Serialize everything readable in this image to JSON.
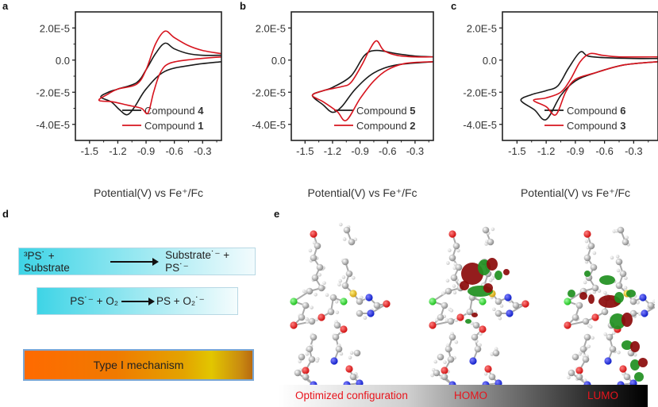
{
  "panel_labels": {
    "a": "a",
    "b": "b",
    "c": "c",
    "d": "d",
    "e": "e"
  },
  "colors": {
    "series_black": "#1a1a1a",
    "series_red": "#d7141e",
    "homo_lumo_positive": "#8b0a0a",
    "homo_lumo_negative": "#1f8f1f",
    "label_red": "#e8141c"
  },
  "chart_data": [
    {
      "type": "line",
      "panel": "a",
      "xlabel": "Potential(V) vs Fe⁺/Fc",
      "ylabel": "",
      "xlim": [
        -1.65,
        -0.1
      ],
      "ylim": [
        -5e-05,
        3e-05
      ],
      "xticks": [
        -1.5,
        -1.2,
        -0.9,
        -0.6,
        -0.3
      ],
      "xtick_labels": [
        "-1.5",
        "-1.2",
        "-0.9",
        "-0.6",
        "-0.3"
      ],
      "yticks": [
        2e-05,
        0,
        -2e-05,
        -4e-05
      ],
      "ytick_labels": [
        "2.0E-5",
        "0.0",
        "-2.0E-5",
        "-4.0E-5"
      ],
      "legend": "bottom-right",
      "series": [
        {
          "name": "Compound 4",
          "label": "Compound ",
          "num": "4",
          "color": "#1a1a1a",
          "points": [
            [
              -0.1,
              -1e-06
            ],
            [
              -0.4,
              -3e-06
            ],
            [
              -0.7,
              -7e-06
            ],
            [
              -0.9,
              -1.8e-05
            ],
            [
              -1.02,
              -2.9e-05
            ],
            [
              -1.1,
              -3.4e-05
            ],
            [
              -1.18,
              -3.1e-05
            ],
            [
              -1.27,
              -2.6e-05
            ],
            [
              -1.38,
              -2.3e-05
            ],
            [
              -1.3,
              -2e-05
            ],
            [
              -1.2,
              -1.8e-05
            ],
            [
              -1.0,
              -1.4e-05
            ],
            [
              -0.9,
              -6e-06
            ],
            [
              -0.8,
              4e-06
            ],
            [
              -0.7,
              1.05e-05
            ],
            [
              -0.6,
              7e-06
            ],
            [
              -0.45,
              4e-06
            ],
            [
              -0.3,
              3e-06
            ],
            [
              -0.1,
              3e-06
            ]
          ]
        },
        {
          "name": "Compound 1",
          "label": "Compound ",
          "num": "1",
          "color": "#d7141e",
          "points": [
            [
              -0.1,
              2e-06
            ],
            [
              -0.4,
              5e-07
            ],
            [
              -0.65,
              -2e-06
            ],
            [
              -0.75,
              -8e-06
            ],
            [
              -0.82,
              -2e-05
            ],
            [
              -0.88,
              -3.3e-05
            ],
            [
              -0.95,
              -3e-05
            ],
            [
              -1.1,
              -2.8e-05
            ],
            [
              -1.25,
              -2.6e-05
            ],
            [
              -1.4,
              -2.5e-05
            ],
            [
              -1.3,
              -2.1e-05
            ],
            [
              -1.2,
              -1.8e-05
            ],
            [
              -1.0,
              -1.5e-05
            ],
            [
              -0.9,
              -6e-06
            ],
            [
              -0.8,
              1e-05
            ],
            [
              -0.7,
              1.8e-05
            ],
            [
              -0.6,
              1.4e-05
            ],
            [
              -0.45,
              9e-06
            ],
            [
              -0.3,
              6e-06
            ],
            [
              -0.1,
              4e-06
            ]
          ]
        }
      ]
    },
    {
      "type": "line",
      "panel": "b",
      "xlabel": "Potential(V) vs Fe⁺/Fc",
      "ylabel": "",
      "xlim": [
        -1.65,
        -0.1
      ],
      "ylim": [
        -5e-05,
        3e-05
      ],
      "xticks": [
        -1.5,
        -1.2,
        -0.9,
        -0.6,
        -0.3
      ],
      "xtick_labels": [
        "-1.5",
        "-1.2",
        "-0.9",
        "-0.6",
        "-0.3"
      ],
      "yticks": [
        2e-05,
        0,
        -2e-05,
        -4e-05
      ],
      "ytick_labels": [
        "2.0E-5",
        "0.0",
        "-2.0E-5",
        "-4.0E-5"
      ],
      "legend": "bottom-right",
      "series": [
        {
          "name": "Compound 5",
          "label": "Compound ",
          "num": "5",
          "color": "#1a1a1a",
          "points": [
            [
              -0.1,
              -1e-06
            ],
            [
              -0.5,
              -3e-06
            ],
            [
              -0.75,
              -8e-06
            ],
            [
              -0.95,
              -1.8e-05
            ],
            [
              -1.1,
              -2.9e-05
            ],
            [
              -1.2,
              -3.25e-05
            ],
            [
              -1.3,
              -2.8e-05
            ],
            [
              -1.42,
              -2.2e-05
            ],
            [
              -1.3,
              -1.9e-05
            ],
            [
              -1.2,
              -1.7e-05
            ],
            [
              -1.0,
              -1e-05
            ],
            [
              -0.85,
              3e-06
            ],
            [
              -0.72,
              6e-06
            ],
            [
              -0.5,
              4e-06
            ],
            [
              -0.3,
              2.5e-06
            ],
            [
              -0.1,
              2e-06
            ]
          ]
        },
        {
          "name": "Compound 2",
          "label": "Compound ",
          "num": "2",
          "color": "#d7141e",
          "points": [
            [
              -0.1,
              -1e-06
            ],
            [
              -0.4,
              -2e-06
            ],
            [
              -0.6,
              -6e-06
            ],
            [
              -0.75,
              -1.3e-05
            ],
            [
              -0.9,
              -2.4e-05
            ],
            [
              -1.05,
              -3.75e-05
            ],
            [
              -1.15,
              -3.2e-05
            ],
            [
              -1.3,
              -2.6e-05
            ],
            [
              -1.42,
              -2.2e-05
            ],
            [
              -1.3,
              -1.9e-05
            ],
            [
              -1.1,
              -1.65e-05
            ],
            [
              -1.0,
              -1.4e-05
            ],
            [
              -0.88,
              -3e-06
            ],
            [
              -0.8,
              6e-06
            ],
            [
              -0.72,
              1.2e-05
            ],
            [
              -0.64,
              6e-06
            ],
            [
              -0.5,
              3e-06
            ],
            [
              -0.3,
              2e-06
            ],
            [
              -0.1,
              2e-06
            ]
          ]
        }
      ]
    },
    {
      "type": "line",
      "panel": "c",
      "xlabel": "Potential(V) vs Fe⁺/Fc",
      "ylabel": "",
      "xlim": [
        -1.65,
        -0.05
      ],
      "ylim": [
        -5e-05,
        3e-05
      ],
      "xticks": [
        -1.5,
        -1.2,
        -0.9,
        -0.6,
        -0.3
      ],
      "xtick_labels": [
        "-1.5",
        "-1.2",
        "-0.9",
        "-0.6",
        "-0.3"
      ],
      "yticks": [
        2e-05,
        0,
        -2e-05,
        -4e-05
      ],
      "ytick_labels": [
        "2.0E-5",
        "0.0",
        "-2.0E-5",
        "-4.0E-5"
      ],
      "legend": "bottom-right",
      "series": [
        {
          "name": "Compound 6",
          "label": "Compound ",
          "num": "6",
          "color": "#1a1a1a",
          "points": [
            [
              -0.05,
              -1e-06
            ],
            [
              -0.4,
              -3e-06
            ],
            [
              -0.7,
              -8e-06
            ],
            [
              -0.9,
              -1.3e-05
            ],
            [
              -1.05,
              -2.2e-05
            ],
            [
              -1.2,
              -3.7e-05
            ],
            [
              -1.32,
              -3.1e-05
            ],
            [
              -1.46,
              -2.5e-05
            ],
            [
              -1.35,
              -2.15e-05
            ],
            [
              -1.2,
              -1.9e-05
            ],
            [
              -1.08,
              -1.6e-05
            ],
            [
              -0.97,
              -5e-06
            ],
            [
              -0.85,
              5e-06
            ],
            [
              -0.77,
              2.5e-06
            ],
            [
              -0.6,
              1.5e-06
            ],
            [
              -0.3,
              1e-06
            ],
            [
              -0.05,
              1e-06
            ]
          ]
        },
        {
          "name": "Compound 3",
          "label": "Compound ",
          "num": "3",
          "color": "#d7141e",
          "points": [
            [
              -0.05,
              -1e-06
            ],
            [
              -0.4,
              -3e-06
            ],
            [
              -0.7,
              -8e-06
            ],
            [
              -0.9,
              -1.2e-05
            ],
            [
              -1.0,
              -2e-05
            ],
            [
              -1.1,
              -3.4e-05
            ],
            [
              -1.2,
              -2.9e-05
            ],
            [
              -1.33,
              -2.5e-05
            ],
            [
              -1.2,
              -2.35e-05
            ],
            [
              -1.05,
              -2e-05
            ],
            [
              -0.95,
              -1.2e-05
            ],
            [
              -0.85,
              -1e-06
            ],
            [
              -0.75,
              4e-06
            ],
            [
              -0.62,
              3e-06
            ],
            [
              -0.45,
              2e-06
            ],
            [
              -0.05,
              2e-06
            ]
          ]
        }
      ]
    }
  ],
  "panel_d": {
    "eq1_left": "³PS˙ + Substrate",
    "eq1_right": "Substrate˙⁻ + PS˙⁻",
    "eq2_left": "PS˙⁻ + O₂",
    "eq2_right": "PS + O₂˙⁻",
    "mechanism": "Type Ⅰ mechanism"
  },
  "panel_e": {
    "labels": [
      "Optimized configuration",
      "HOMO",
      "LUMO"
    ]
  }
}
